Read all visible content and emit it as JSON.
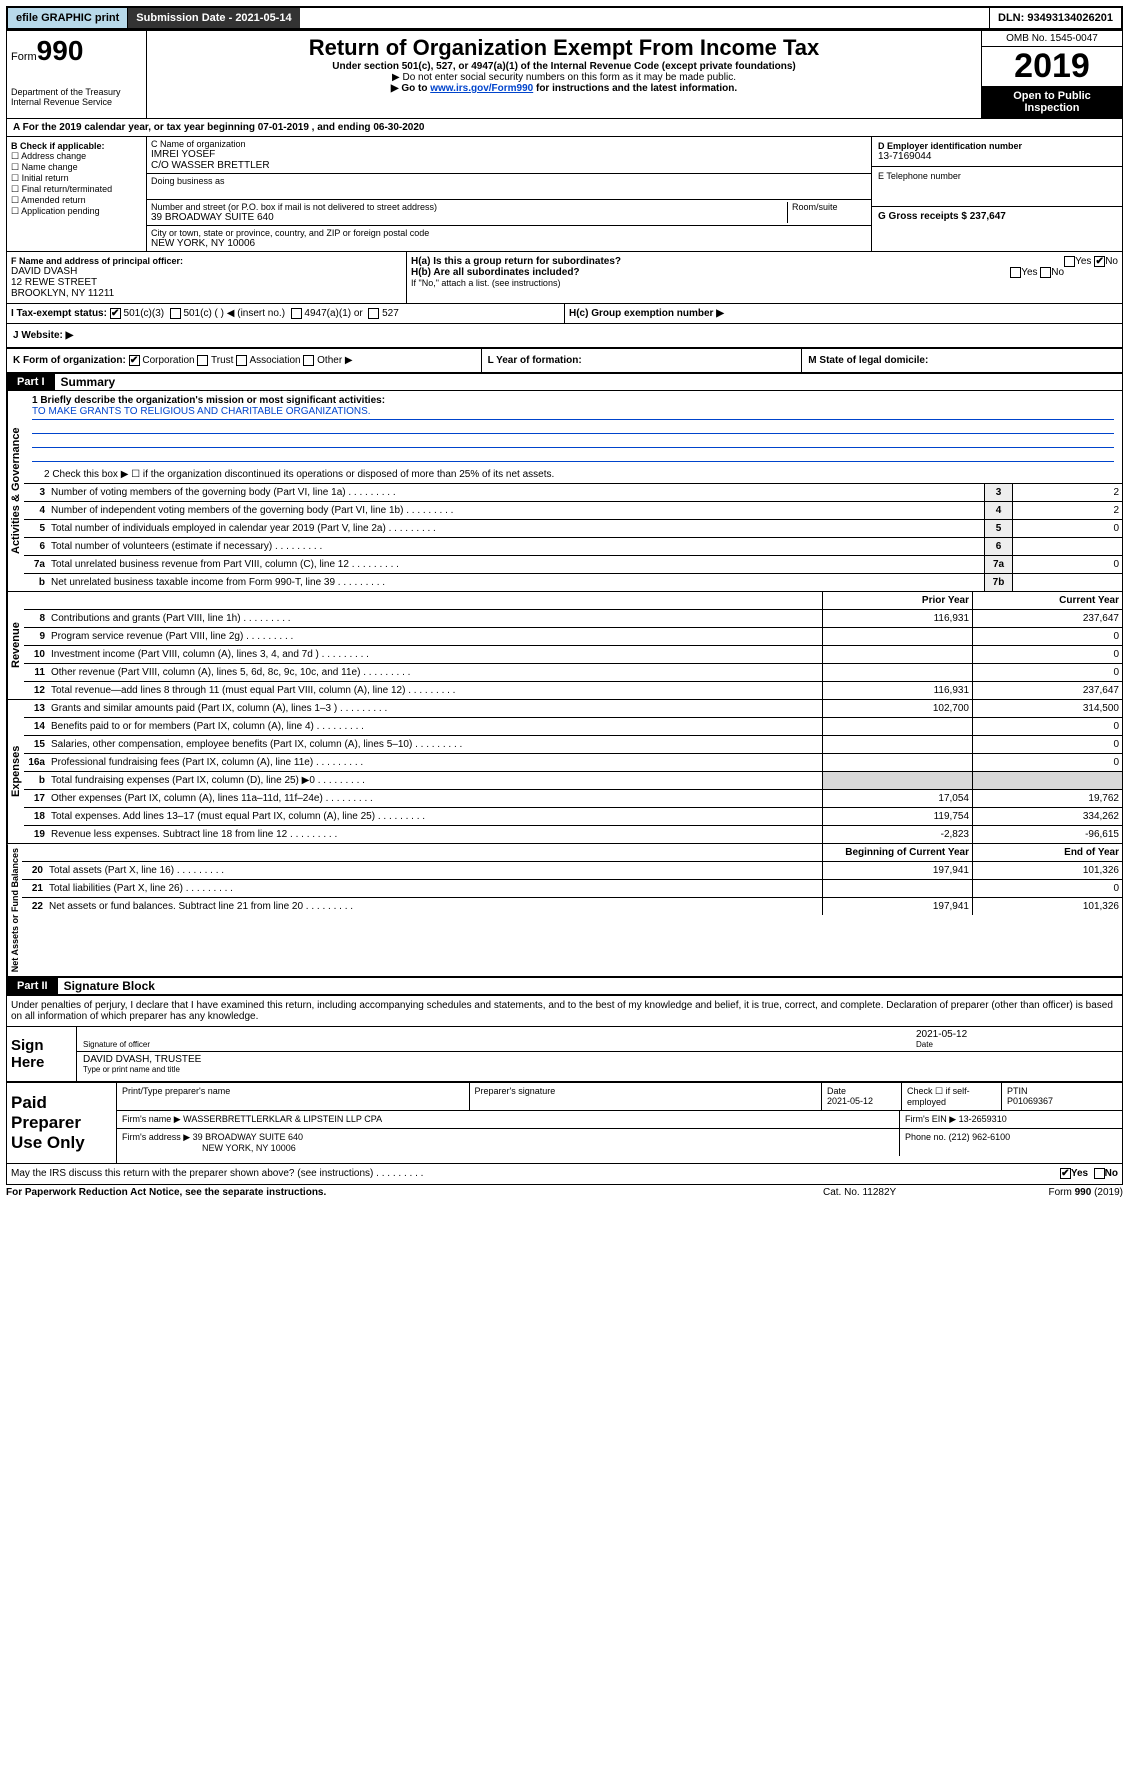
{
  "topbar": {
    "efile": "efile GRAPHIC print",
    "submission": "Submission Date - 2021-05-14",
    "dln": "DLN: 93493134026201"
  },
  "header": {
    "form_label": "Form",
    "form_number": "990",
    "dept1": "Department of the Treasury",
    "dept2": "Internal Revenue Service",
    "title": "Return of Organization Exempt From Income Tax",
    "subtitle": "Under section 501(c), 527, or 4947(a)(1) of the Internal Revenue Code (except private foundations)",
    "note1": "▶ Do not enter social security numbers on this form as it may be made public.",
    "note2_pre": "▶ Go to ",
    "note2_link": "www.irs.gov/Form990",
    "note2_post": " for instructions and the latest information.",
    "omb": "OMB No. 1545-0047",
    "year": "2019",
    "open_public": "Open to Public Inspection"
  },
  "a_line": "A For the 2019 calendar year, or tax year beginning 07-01-2019      , and ending 06-30-2020",
  "b": {
    "label": "B Check if applicable:",
    "opts": [
      "☐ Address change",
      "☐ Name change",
      "☐ Initial return",
      "☐ Final return/terminated",
      "☐ Amended return",
      "☐ Application pending"
    ]
  },
  "c": {
    "label": "C Name of organization",
    "name1": "IMREI YOSEF",
    "name2": "C/O WASSER BRETTLER",
    "dba_label": "Doing business as",
    "addr_label": "Number and street (or P.O. box if mail is not delivered to street address)",
    "room_label": "Room/suite",
    "addr": "39 BROADWAY SUITE 640",
    "city_label": "City or town, state or province, country, and ZIP or foreign postal code",
    "city": "NEW YORK, NY  10006"
  },
  "d": {
    "label": "D Employer identification number",
    "value": "13-7169044"
  },
  "e": {
    "label": "E Telephone number"
  },
  "g": {
    "label": "G Gross receipts $",
    "value": "237,647"
  },
  "f": {
    "label": "F  Name and address of principal officer:",
    "line1": "DAVID DVASH",
    "line2": "12 REWE STREET",
    "line3": "BROOKLYN, NY  11211"
  },
  "h": {
    "a_label": "H(a)  Is this a group return for subordinates?",
    "a_yes": "Yes",
    "a_no": "No",
    "b_label": "H(b)  Are all subordinates included?",
    "b_note": "If \"No,\" attach a list. (see instructions)",
    "c_label": "H(c)  Group exemption number ▶"
  },
  "i": {
    "label": "I  Tax-exempt status:",
    "opt1": "501(c)(3)",
    "opt2": "501(c) (  ) ◀ (insert no.)",
    "opt3": "4947(a)(1) or",
    "opt4": "527"
  },
  "j": {
    "label": "J   Website: ▶"
  },
  "k": {
    "label": "K Form of organization:",
    "opts": [
      "Corporation",
      "Trust",
      "Association",
      "Other ▶"
    ],
    "l_label": "L Year of formation:",
    "m_label": "M State of legal domicile:"
  },
  "part1": {
    "header": "Part I",
    "title": "Summary",
    "mission_label": "1  Briefly describe the organization's mission or most significant activities:",
    "mission_text": "TO MAKE GRANTS TO RELIGIOUS AND CHARITABLE ORGANIZATIONS.",
    "line2": "2   Check this box ▶ ☐  if the organization discontinued its operations or disposed of more than 25% of its net assets.",
    "col_prior": "Prior Year",
    "col_current": "Current Year",
    "col_beg": "Beginning of Current Year",
    "col_end": "End of Year",
    "sections": {
      "gov_label": "Activities & Governance",
      "rev_label": "Revenue",
      "exp_label": "Expenses",
      "nab_label": "Net Assets or Fund Balances"
    },
    "rows_gov": [
      {
        "n": "3",
        "label": "Number of voting members of the governing body (Part VI, line 1a)",
        "box": "3",
        "val": "2"
      },
      {
        "n": "4",
        "label": "Number of independent voting members of the governing body (Part VI, line 1b)",
        "box": "4",
        "val": "2"
      },
      {
        "n": "5",
        "label": "Total number of individuals employed in calendar year 2019 (Part V, line 2a)",
        "box": "5",
        "val": "0"
      },
      {
        "n": "6",
        "label": "Total number of volunteers (estimate if necessary)",
        "box": "6",
        "val": ""
      },
      {
        "n": "7a",
        "label": "Total unrelated business revenue from Part VIII, column (C), line 12",
        "box": "7a",
        "val": "0"
      },
      {
        "n": "b",
        "label": "Net unrelated business taxable income from Form 990-T, line 39",
        "box": "7b",
        "val": ""
      }
    ],
    "rows_rev": [
      {
        "n": "8",
        "label": "Contributions and grants (Part VIII, line 1h)",
        "py": "116,931",
        "cy": "237,647"
      },
      {
        "n": "9",
        "label": "Program service revenue (Part VIII, line 2g)",
        "py": "",
        "cy": "0"
      },
      {
        "n": "10",
        "label": "Investment income (Part VIII, column (A), lines 3, 4, and 7d )",
        "py": "",
        "cy": "0"
      },
      {
        "n": "11",
        "label": "Other revenue (Part VIII, column (A), lines 5, 6d, 8c, 9c, 10c, and 11e)",
        "py": "",
        "cy": "0"
      },
      {
        "n": "12",
        "label": "Total revenue—add lines 8 through 11 (must equal Part VIII, column (A), line 12)",
        "py": "116,931",
        "cy": "237,647"
      }
    ],
    "rows_exp": [
      {
        "n": "13",
        "label": "Grants and similar amounts paid (Part IX, column (A), lines 1–3 )",
        "py": "102,700",
        "cy": "314,500"
      },
      {
        "n": "14",
        "label": "Benefits paid to or for members (Part IX, column (A), line 4)",
        "py": "",
        "cy": "0"
      },
      {
        "n": "15",
        "label": "Salaries, other compensation, employee benefits (Part IX, column (A), lines 5–10)",
        "py": "",
        "cy": "0"
      },
      {
        "n": "16a",
        "label": "Professional fundraising fees (Part IX, column (A), line 11e)",
        "py": "",
        "cy": "0"
      },
      {
        "n": "b",
        "label": "Total fundraising expenses (Part IX, column (D), line 25) ▶0",
        "py": "",
        "cy": "",
        "shaded": true
      },
      {
        "n": "17",
        "label": "Other expenses (Part IX, column (A), lines 11a–11d, 11f–24e)",
        "py": "17,054",
        "cy": "19,762"
      },
      {
        "n": "18",
        "label": "Total expenses. Add lines 13–17 (must equal Part IX, column (A), line 25)",
        "py": "119,754",
        "cy": "334,262"
      },
      {
        "n": "19",
        "label": "Revenue less expenses. Subtract line 18 from line 12",
        "py": "-2,823",
        "cy": "-96,615"
      }
    ],
    "rows_nab": [
      {
        "n": "20",
        "label": "Total assets (Part X, line 16)",
        "py": "197,941",
        "cy": "101,326"
      },
      {
        "n": "21",
        "label": "Total liabilities (Part X, line 26)",
        "py": "",
        "cy": "0"
      },
      {
        "n": "22",
        "label": "Net assets or fund balances. Subtract line 21 from line 20",
        "py": "197,941",
        "cy": "101,326"
      }
    ]
  },
  "part2": {
    "header": "Part II",
    "title": "Signature Block",
    "declaration": "Under penalties of perjury, I declare that I have examined this return, including accompanying schedules and statements, and to the best of my knowledge and belief, it is true, correct, and complete. Declaration of preparer (other than officer) is based on all information of which preparer has any knowledge.",
    "sign_here": "Sign Here",
    "sig_date": "2021-05-12",
    "sig_officer_lbl": "Signature of officer",
    "date_lbl": "Date",
    "officer_name": "DAVID DVASH, TRUSTEE",
    "type_name_lbl": "Type or print name and title",
    "paid_label": "Paid Preparer Use Only",
    "print_prep": "Print/Type preparer's name",
    "prep_sig": "Preparer's signature",
    "prep_date_lbl": "Date",
    "prep_date": "2021-05-12",
    "check_self": "Check ☐ if self-employed",
    "ptin_lbl": "PTIN",
    "ptin": "P01069367",
    "firm_name_lbl": "Firm's name      ▶",
    "firm_name": "WASSERBRETTLERKLAR & LIPSTEIN LLP CPA",
    "firm_ein_lbl": "Firm's EIN ▶",
    "firm_ein": "13-2659310",
    "firm_addr_lbl": "Firm's address ▶",
    "firm_addr1": "39 BROADWAY SUITE 640",
    "firm_addr2": "NEW YORK, NY  10006",
    "phone_lbl": "Phone no.",
    "phone": "(212) 962-6100",
    "discuss": "May the IRS discuss this return with the preparer shown above? (see instructions)",
    "discuss_yes": "Yes",
    "discuss_no": "No"
  },
  "footer": {
    "paperwork": "For Paperwork Reduction Act Notice, see the separate instructions.",
    "cat": "Cat. No. 11282Y",
    "form": "Form 990 (2019)"
  }
}
